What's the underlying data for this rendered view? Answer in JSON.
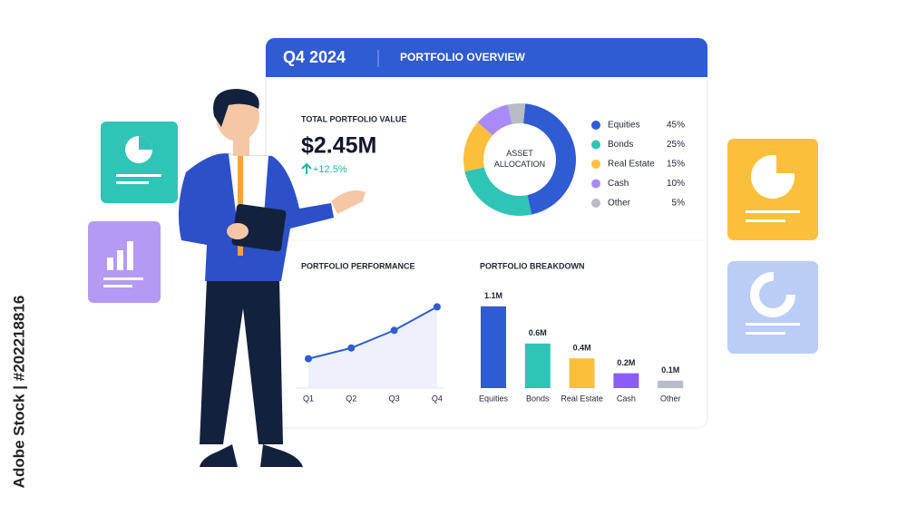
{
  "watermark": "Adobe Stock | #202218816",
  "header": {
    "period": "Q4 2024",
    "title": "PORTFOLIO OVERVIEW"
  },
  "kpi": {
    "label": "TOTAL PORTFOLIO VALUE",
    "value": "$2.45M",
    "change": "+12.5%"
  },
  "chart_data": [
    {
      "type": "pie",
      "center_label": "ASSET ALLOCATION",
      "categories": [
        "Equities",
        "Bonds",
        "Real Estate",
        "Cash",
        "Other"
      ],
      "values": [
        45,
        25,
        15,
        10,
        5
      ],
      "value_labels": [
        "45%",
        "25%",
        "15%",
        "10%",
        "5%"
      ],
      "colors": [
        "#2f5bd3",
        "#2ec4b6",
        "#fbbf3c",
        "#a78bfa",
        "#b8bcc8"
      ]
    },
    {
      "type": "line",
      "title": "PORTFOLIO PERFORMANCE",
      "categories": [
        "Q1",
        "Q2",
        "Q3",
        "Q4"
      ],
      "values": [
        30,
        41,
        59,
        83
      ],
      "color": "#2f5bd3"
    },
    {
      "type": "bar",
      "title": "PORTFOLIO BREAKDOWN",
      "categories": [
        "Equities",
        "Bonds",
        "Real Estate",
        "Cash",
        "Other"
      ],
      "values": [
        1.1,
        0.6,
        0.4,
        0.2,
        0.1
      ],
      "value_labels": [
        "1.1M",
        "0.6M",
        "0.4M",
        "0.2M",
        "0.1M"
      ],
      "colors": [
        "#2f5bd3",
        "#2ec4b6",
        "#fbbf3c",
        "#8b5cf6",
        "#b8bcc8"
      ]
    }
  ]
}
